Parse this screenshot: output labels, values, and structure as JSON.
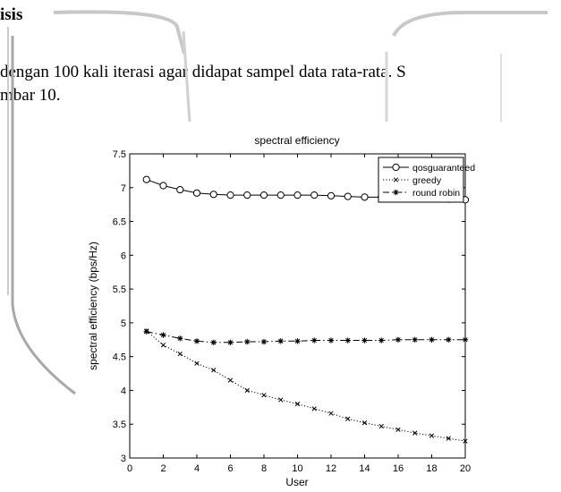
{
  "document": {
    "heading": "isis",
    "line1": "dengan 100 kali iterasi agar didapat sampel data rata-rata. S",
    "line2": "mbar 10."
  },
  "chart_data": {
    "type": "line",
    "title": "spectral efficiency",
    "xlabel": "User",
    "ylabel": "spectral efficiency (bps/Hz)",
    "xlim": [
      0,
      20
    ],
    "ylim": [
      3,
      7.5
    ],
    "xticks": [
      0,
      2,
      4,
      6,
      8,
      10,
      12,
      14,
      16,
      18,
      20
    ],
    "yticks": [
      3,
      3.5,
      4,
      4.5,
      5,
      5.5,
      6,
      6.5,
      7,
      7.5
    ],
    "grid": false,
    "legend_position": "top-right",
    "x": [
      1,
      2,
      3,
      4,
      5,
      6,
      7,
      8,
      9,
      10,
      11,
      12,
      13,
      14,
      15,
      16,
      17,
      18,
      19,
      20
    ],
    "series": [
      {
        "name": "qosguaranteed",
        "marker": "circle",
        "line": "solid",
        "values": [
          7.12,
          7.03,
          6.97,
          6.92,
          6.9,
          6.89,
          6.89,
          6.89,
          6.89,
          6.89,
          6.89,
          6.88,
          6.87,
          6.86,
          6.86,
          6.85,
          6.84,
          6.84,
          6.83,
          6.82
        ]
      },
      {
        "name": "greedy",
        "marker": "x",
        "line": "dotted",
        "values": [
          4.88,
          4.67,
          4.54,
          4.4,
          4.3,
          4.15,
          4.0,
          3.93,
          3.86,
          3.8,
          3.73,
          3.66,
          3.58,
          3.52,
          3.47,
          3.42,
          3.37,
          3.33,
          3.29,
          3.25
        ]
      },
      {
        "name": "round robin",
        "marker": "star",
        "line": "dashdot",
        "values": [
          4.87,
          4.82,
          4.77,
          4.73,
          4.71,
          4.71,
          4.72,
          4.72,
          4.73,
          4.73,
          4.74,
          4.74,
          4.74,
          4.74,
          4.74,
          4.75,
          4.75,
          4.75,
          4.75,
          4.75
        ]
      }
    ]
  }
}
